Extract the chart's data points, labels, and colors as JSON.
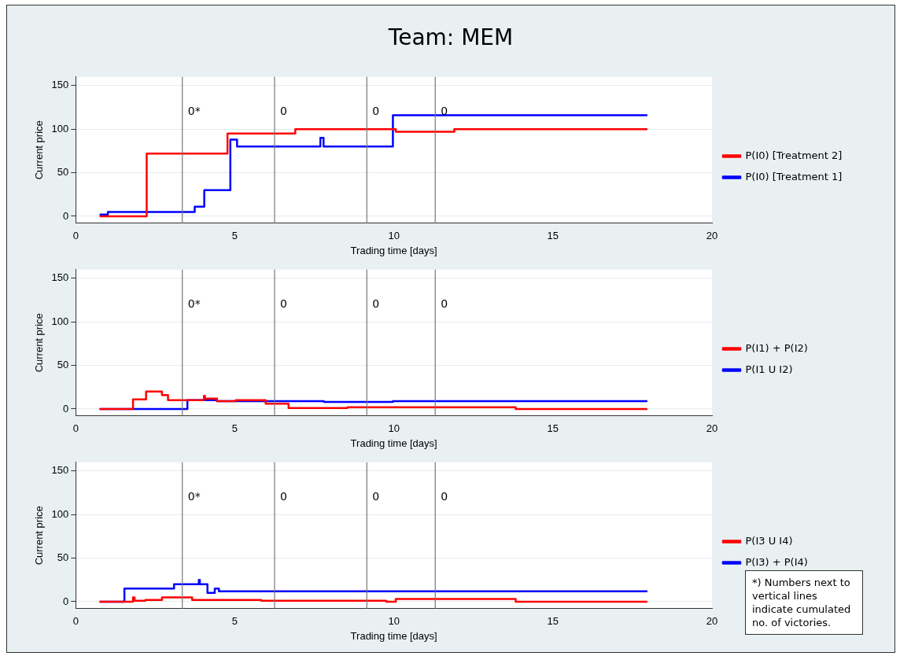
{
  "chart_data": [
    {
      "type": "step",
      "title": "Team: MEM",
      "xlabel": "Trading time [days]",
      "ylabel": "Current price",
      "xlim": [
        0,
        20
      ],
      "xticks": [
        0,
        5,
        10,
        15,
        20
      ],
      "ylim": [
        -8,
        160
      ],
      "yticks": [
        0,
        50,
        100,
        150
      ],
      "grid": "y",
      "legend": "right",
      "marker": "none",
      "ref_lines": [
        {
          "axis": "x",
          "value": 3.35
        },
        {
          "axis": "x",
          "value": 6.25
        },
        {
          "axis": "x",
          "value": 9.15
        },
        {
          "axis": "x",
          "value": 11.3
        }
      ],
      "annotations": [
        {
          "text": "0*",
          "x": 3.35,
          "y": 120
        },
        {
          "text": "0",
          "x": 6.25,
          "y": 120
        },
        {
          "text": "0",
          "x": 9.15,
          "y": 120
        },
        {
          "text": "0",
          "x": 11.3,
          "y": 120
        }
      ],
      "series": [
        {
          "name": "P(I0) [Treatment 2]",
          "color": "#ff0000",
          "x": [
            0.75,
            2.23,
            4.77,
            6.9,
            10.06,
            11.9,
            17.97
          ],
          "values": [
            0,
            72,
            95,
            100,
            97,
            100,
            100
          ]
        },
        {
          "name": "P(I0) [Treatment 1]",
          "color": "#0000ff",
          "x": [
            0.75,
            1.01,
            3.74,
            4.04,
            4.86,
            5.07,
            7.69,
            7.79,
            9.97,
            17.97
          ],
          "values": [
            2,
            5,
            11,
            30,
            88,
            80,
            90,
            80,
            116,
            116
          ]
        }
      ]
    },
    {
      "type": "step",
      "xlabel": "Trading time [days]",
      "ylabel": "Current price",
      "xlim": [
        0,
        20
      ],
      "xticks": [
        0,
        5,
        10,
        15,
        20
      ],
      "ylim": [
        -8,
        160
      ],
      "yticks": [
        0,
        50,
        100,
        150
      ],
      "grid": "y",
      "legend": "right",
      "marker": "none",
      "ref_lines": [
        {
          "axis": "x",
          "value": 3.35
        },
        {
          "axis": "x",
          "value": 6.25
        },
        {
          "axis": "x",
          "value": 9.15
        },
        {
          "axis": "x",
          "value": 11.3
        }
      ],
      "annotations": [
        {
          "text": "0*",
          "x": 3.35,
          "y": 120
        },
        {
          "text": "0",
          "x": 6.25,
          "y": 120
        },
        {
          "text": "0",
          "x": 9.15,
          "y": 120
        },
        {
          "text": "0",
          "x": 11.3,
          "y": 120
        }
      ],
      "series": [
        {
          "name": "P(I1) + P(I2)",
          "color": "#ff0000",
          "x": [
            0.75,
            1.8,
            2.21,
            2.71,
            2.9,
            4.03,
            4.06,
            4.44,
            5.03,
            5.97,
            6.69,
            8.54,
            13.83,
            17.97
          ],
          "values": [
            0,
            11,
            20,
            16,
            10,
            15,
            12,
            9,
            10,
            6,
            1,
            2,
            0,
            0
          ]
        },
        {
          "name": "P(I1 U I2)",
          "color": "#0000ff",
          "x": [
            0.75,
            3.51,
            4.44,
            7.8,
            9.97,
            17.97
          ],
          "values": [
            0,
            10,
            9,
            8,
            9,
            9
          ]
        }
      ]
    },
    {
      "type": "step",
      "xlabel": "Trading time [days]",
      "ylabel": "Current price",
      "xlim": [
        0,
        20
      ],
      "xticks": [
        0,
        5,
        10,
        15,
        20
      ],
      "ylim": [
        -8,
        160
      ],
      "yticks": [
        0,
        50,
        100,
        150
      ],
      "grid": "y",
      "legend": "right",
      "marker": "none",
      "ref_lines": [
        {
          "axis": "x",
          "value": 3.35
        },
        {
          "axis": "x",
          "value": 6.25
        },
        {
          "axis": "x",
          "value": 9.15
        },
        {
          "axis": "x",
          "value": 11.3
        }
      ],
      "annotations": [
        {
          "text": "0*",
          "x": 3.35,
          "y": 120
        },
        {
          "text": "0",
          "x": 6.25,
          "y": 120
        },
        {
          "text": "0",
          "x": 9.15,
          "y": 120
        },
        {
          "text": "0",
          "x": 11.3,
          "y": 120
        },
        "*) Numbers next to vertical lines indicate cumulated no. of victories."
      ],
      "series": [
        {
          "name": "P(I3 U I4)",
          "color": "#ff0000",
          "x": [
            0.75,
            1.8,
            1.85,
            2.19,
            2.71,
            3.66,
            5.83,
            9.76,
            10.06,
            13.83,
            17.97
          ],
          "values": [
            0,
            5,
            1,
            2,
            5,
            2,
            1,
            0,
            3,
            0,
            0
          ]
        },
        {
          "name": "P(I3) + P(I4)",
          "color": "#0000ff",
          "x": [
            0.75,
            1.53,
            3.09,
            3.87,
            3.9,
            4.14,
            4.37,
            4.5,
            17.97
          ],
          "values": [
            0,
            15,
            20,
            25,
            20,
            10,
            15,
            12,
            12
          ]
        }
      ]
    }
  ]
}
